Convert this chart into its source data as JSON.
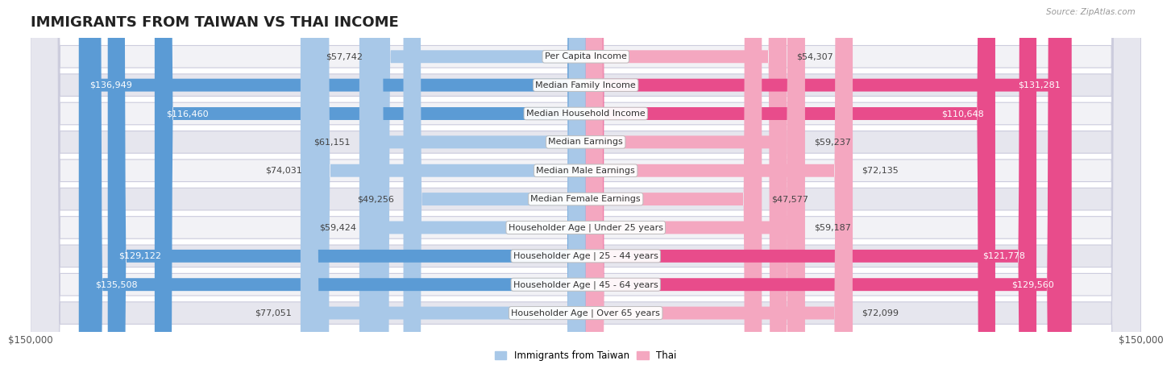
{
  "title": "IMMIGRANTS FROM TAIWAN VS THAI INCOME",
  "source": "Source: ZipAtlas.com",
  "categories": [
    "Per Capita Income",
    "Median Family Income",
    "Median Household Income",
    "Median Earnings",
    "Median Male Earnings",
    "Median Female Earnings",
    "Householder Age | Under 25 years",
    "Householder Age | 25 - 44 years",
    "Householder Age | 45 - 64 years",
    "Householder Age | Over 65 years"
  ],
  "taiwan_values": [
    57742,
    136949,
    116460,
    61151,
    74031,
    49256,
    59424,
    129122,
    135508,
    77051
  ],
  "thai_values": [
    54307,
    131281,
    110648,
    59237,
    72135,
    47577,
    59187,
    121778,
    129560,
    72099
  ],
  "taiwan_color_light": "#a8c8e8",
  "taiwan_color_dark": "#5b9bd5",
  "thai_color_light": "#f4a7c0",
  "thai_color_dark": "#e84c8b",
  "bg_color": "#ffffff",
  "row_bg_odd": "#f0f0f0",
  "row_bg_even": "#e0e0e8",
  "max_value": 150000,
  "xlabel_left": "$150,000",
  "xlabel_right": "$150,000",
  "legend_taiwan": "Immigrants from Taiwan",
  "legend_thai": "Thai",
  "title_fontsize": 13,
  "label_fontsize": 8,
  "value_fontsize": 8,
  "threshold": 100000
}
